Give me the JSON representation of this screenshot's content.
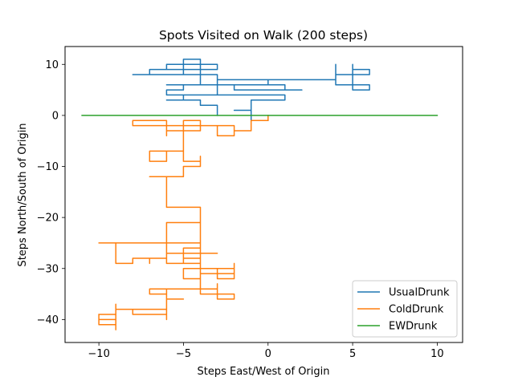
{
  "chart_data": {
    "type": "line",
    "title": "Spots Visited on Walk (200 steps)",
    "xlabel": "Steps East/West of Origin",
    "ylabel": "Steps North/South of Origin",
    "xlim": [
      -12,
      11.5
    ],
    "ylim": [
      -44.5,
      13.5
    ],
    "xticks": [
      -10,
      -5,
      0,
      5,
      10
    ],
    "yticks": [
      10,
      0,
      -10,
      -20,
      -30,
      -40
    ],
    "grid": false,
    "legend_position": "lower-right",
    "series": [
      {
        "name": "UsualDrunk",
        "color": "#1f77b4",
        "points": [
          [
            0,
            -1
          ],
          [
            -1,
            -1
          ],
          [
            -1,
            1
          ],
          [
            -2,
            1
          ],
          [
            -1,
            1
          ],
          [
            -1,
            2
          ],
          [
            -1,
            3
          ],
          [
            1,
            3
          ],
          [
            1,
            4
          ],
          [
            -6,
            4
          ],
          [
            -6,
            5
          ],
          [
            -5,
            5
          ],
          [
            -5,
            6
          ],
          [
            -6,
            6
          ],
          [
            1,
            6
          ],
          [
            1,
            5
          ],
          [
            2,
            5
          ],
          [
            -2,
            5
          ],
          [
            -2,
            6
          ],
          [
            0,
            6
          ],
          [
            0,
            7
          ],
          [
            4,
            7
          ],
          [
            4,
            10
          ],
          [
            4,
            8
          ],
          [
            6,
            8
          ],
          [
            6,
            9
          ],
          [
            5,
            9
          ],
          [
            5,
            10
          ],
          [
            5,
            5
          ],
          [
            6,
            5
          ],
          [
            6,
            6
          ],
          [
            4,
            6
          ],
          [
            4,
            7
          ],
          [
            -3,
            7
          ],
          [
            -3,
            6
          ],
          [
            -4,
            6
          ],
          [
            -4,
            7
          ],
          [
            -4,
            9
          ],
          [
            -7,
            9
          ],
          [
            -7,
            8
          ],
          [
            -8,
            8
          ],
          [
            -4,
            8
          ],
          [
            -4,
            11
          ],
          [
            -5,
            11
          ],
          [
            -5,
            10
          ],
          [
            -6,
            10
          ],
          [
            -6,
            9
          ],
          [
            -3,
            9
          ],
          [
            -3,
            10
          ],
          [
            -5,
            10
          ],
          [
            -5,
            8
          ],
          [
            -3,
            8
          ],
          [
            -3,
            4
          ],
          [
            -5,
            4
          ],
          [
            -5,
            3
          ],
          [
            -6,
            3
          ],
          [
            -4,
            3
          ],
          [
            -4,
            2
          ],
          [
            -3,
            2
          ],
          [
            -3,
            0
          ]
        ]
      },
      {
        "name": "ColdDrunk",
        "color": "#ff7f0e",
        "points": [
          [
            0,
            0
          ],
          [
            0,
            -1
          ],
          [
            -1,
            -1
          ],
          [
            -1,
            -3
          ],
          [
            -2,
            -3
          ],
          [
            -2,
            -2
          ],
          [
            -3,
            -2
          ],
          [
            -3,
            -4
          ],
          [
            -2,
            -4
          ],
          [
            -2,
            -2
          ],
          [
            -4,
            -2
          ],
          [
            -4,
            -1
          ],
          [
            -5,
            -1
          ],
          [
            -5,
            -3
          ],
          [
            -6,
            -3
          ],
          [
            -6,
            -4
          ],
          [
            -6,
            -1
          ],
          [
            -8,
            -1
          ],
          [
            -8,
            -2
          ],
          [
            -4,
            -2
          ],
          [
            -4,
            -3
          ],
          [
            -6,
            -3
          ],
          [
            -6,
            -2
          ],
          [
            -5,
            -2
          ],
          [
            -5,
            -7
          ],
          [
            -7,
            -7
          ],
          [
            -7,
            -9
          ],
          [
            -6,
            -9
          ],
          [
            -6,
            -7
          ],
          [
            -5,
            -7
          ],
          [
            -5,
            -9
          ],
          [
            -4,
            -9
          ],
          [
            -4,
            -8
          ],
          [
            -4,
            -10
          ],
          [
            -5,
            -10
          ],
          [
            -5,
            -12
          ],
          [
            -7,
            -12
          ],
          [
            -6,
            -12
          ],
          [
            -6,
            -18
          ],
          [
            -4,
            -18
          ],
          [
            -4,
            -25
          ],
          [
            -6,
            -25
          ],
          [
            -6,
            -26
          ],
          [
            -6,
            -21
          ],
          [
            -4,
            -21
          ],
          [
            -4,
            -29
          ],
          [
            -6,
            -29
          ],
          [
            -6,
            -25
          ],
          [
            -10,
            -25
          ],
          [
            -9,
            -25
          ],
          [
            -9,
            -29
          ],
          [
            -8,
            -29
          ],
          [
            -8,
            -28
          ],
          [
            -7,
            -28
          ],
          [
            -7,
            -29
          ],
          [
            -7,
            -28
          ],
          [
            -6,
            -28
          ],
          [
            -6,
            -27
          ],
          [
            -4,
            -27
          ],
          [
            -4,
            -28
          ],
          [
            -5,
            -28
          ],
          [
            -5,
            -26
          ],
          [
            -4,
            -26
          ],
          [
            -4,
            -29
          ],
          [
            -5,
            -29
          ],
          [
            -5,
            -27
          ],
          [
            -3,
            -27
          ],
          [
            -4,
            -27
          ],
          [
            -4,
            -32
          ],
          [
            -5,
            -32
          ],
          [
            -5,
            -30
          ],
          [
            -3,
            -30
          ],
          [
            -3,
            -31
          ],
          [
            -2,
            -31
          ],
          [
            -2,
            -29
          ],
          [
            -2,
            -32
          ],
          [
            -3,
            -32
          ],
          [
            -3,
            -30
          ],
          [
            -2,
            -30
          ],
          [
            -2,
            -31
          ],
          [
            -4,
            -31
          ],
          [
            -4,
            -34
          ],
          [
            -3,
            -34
          ],
          [
            -3,
            -33
          ],
          [
            -3,
            -36
          ],
          [
            -2,
            -36
          ],
          [
            -2,
            -35
          ],
          [
            -4,
            -35
          ],
          [
            -4,
            -34
          ],
          [
            -7,
            -34
          ],
          [
            -7,
            -35
          ],
          [
            -6,
            -35
          ],
          [
            -6,
            -34
          ],
          [
            -6,
            -36
          ],
          [
            -5,
            -36
          ],
          [
            -6,
            -36
          ],
          [
            -6,
            -38
          ],
          [
            -8,
            -38
          ],
          [
            -8,
            -39
          ],
          [
            -6,
            -39
          ],
          [
            -6,
            -40
          ],
          [
            -6,
            -38
          ],
          [
            -9,
            -38
          ],
          [
            -9,
            -37
          ],
          [
            -9,
            -42
          ],
          [
            -9,
            -40
          ],
          [
            -10,
            -40
          ],
          [
            -10,
            -39
          ],
          [
            -10,
            -41
          ],
          [
            -9,
            -41
          ],
          [
            -9,
            -39
          ],
          [
            -10,
            -39
          ]
        ]
      },
      {
        "name": "EWDrunk",
        "color": "#2ca02c",
        "points": [
          [
            -11,
            0
          ],
          [
            10,
            0
          ]
        ]
      }
    ]
  }
}
